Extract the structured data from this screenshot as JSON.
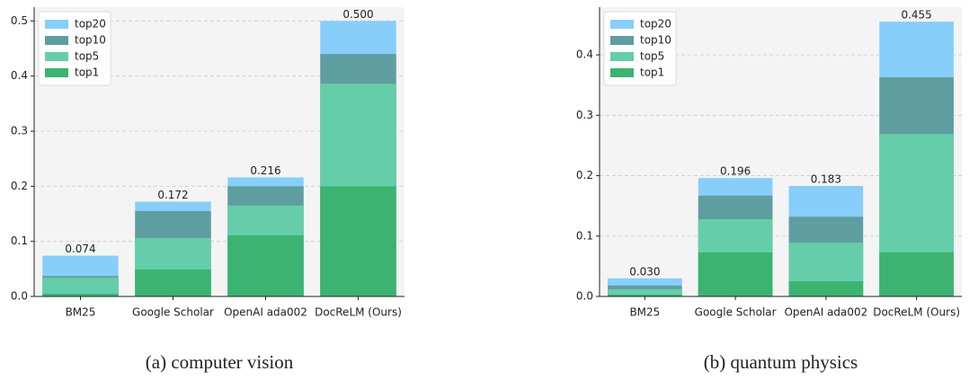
{
  "chart_data": [
    {
      "type": "bar",
      "caption": "(a) computer vision",
      "categories": [
        "BM25",
        "Google Scholar",
        "OpenAI ada002",
        "DocReLM (Ours)"
      ],
      "series": [
        {
          "name": "top20",
          "color": "#87cefa",
          "values": [
            0.074,
            0.172,
            0.216,
            0.5
          ],
          "value_labels": [
            "0.074",
            "0.172",
            "0.216",
            "0.500"
          ]
        },
        {
          "name": "top10",
          "color": "#5f9ea0",
          "values": [
            0.037,
            0.155,
            0.2,
            0.44
          ]
        },
        {
          "name": "top5",
          "color": "#66cdaa",
          "values": [
            0.034,
            0.106,
            0.165,
            0.386
          ]
        },
        {
          "name": "top1",
          "color": "#3cb371",
          "values": [
            0.005,
            0.049,
            0.111,
            0.2
          ]
        }
      ],
      "ylim": [
        0,
        0.525
      ],
      "yticks": [
        {
          "value": 0,
          "label": "0.0"
        },
        0.1,
        0.2,
        0.3,
        0.4,
        0.5
      ],
      "grid": true,
      "legend": "upper left"
    },
    {
      "type": "bar",
      "caption": "(b) quantum physics",
      "categories": [
        "BM25",
        "Google Scholar",
        "OpenAI ada002",
        "DocReLM (Ours)"
      ],
      "series": [
        {
          "name": "top20",
          "color": "#87cefa",
          "values": [
            0.03,
            0.196,
            0.183,
            0.455
          ],
          "value_labels": [
            "0.030",
            "0.196",
            "0.183",
            "0.455"
          ]
        },
        {
          "name": "top10",
          "color": "#5f9ea0",
          "values": [
            0.018,
            0.167,
            0.132,
            0.363
          ]
        },
        {
          "name": "top5",
          "color": "#66cdaa",
          "values": [
            0.012,
            0.128,
            0.089,
            0.269
          ]
        },
        {
          "name": "top1",
          "color": "#3cb371",
          "values": [
            0.003,
            0.073,
            0.025,
            0.073
          ]
        }
      ],
      "ylim": [
        0,
        0.479
      ],
      "yticks": [
        {
          "value": 0,
          "label": "0.0"
        },
        0.1,
        0.2,
        0.3,
        0.4
      ],
      "grid": true,
      "legend": "upper left"
    }
  ]
}
